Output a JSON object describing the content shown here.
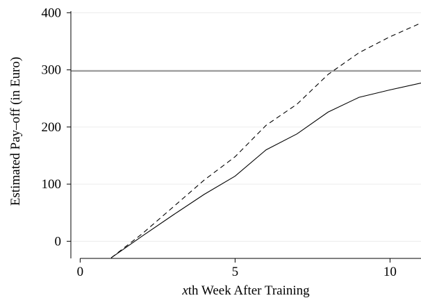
{
  "chart_data": {
    "type": "line",
    "title": "",
    "xlabel": "xth Week After Training",
    "xlabel_italic_prefix": "x",
    "xlabel_rest": "th Week After Training",
    "ylabel": "Estimated Pay–off (in Euro)",
    "xlim": [
      -0.3,
      11
    ],
    "ylim": [
      -30,
      415
    ],
    "xticks": [
      0,
      5,
      10
    ],
    "yticks": [
      0,
      100,
      200,
      300,
      400
    ],
    "xtick_labels": [
      "0",
      "5",
      "10"
    ],
    "ytick_labels": [
      "0",
      "100",
      "200",
      "300",
      "400"
    ],
    "grid": true,
    "x": [
      1,
      2,
      3,
      4,
      5,
      6,
      7,
      8,
      9,
      10,
      11
    ],
    "series": [
      {
        "style": "solid",
        "values": [
          -29,
          9,
          46,
          82,
          114,
          160,
          188,
          226,
          252,
          265,
          277
        ]
      },
      {
        "style": "dashed",
        "values": [
          -29,
          13,
          60,
          107,
          148,
          203,
          240,
          292,
          330,
          358,
          382
        ]
      }
    ],
    "reference_line": {
      "y": 298,
      "color": "#808080"
    }
  }
}
